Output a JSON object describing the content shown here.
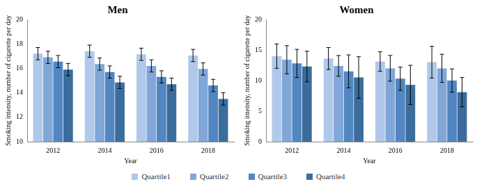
{
  "chart_data": [
    {
      "type": "bar",
      "title": "Men",
      "x_label": "Year",
      "y_label": "Smoking intensity, number of cigarette per day",
      "categories": [
        "2012",
        "2014",
        "2016",
        "2018"
      ],
      "series": [
        {
          "name": "Quartile1",
          "color": "#b0c8ea",
          "values": [
            17.2,
            17.4,
            17.15,
            17.05
          ],
          "errors": [
            0.5,
            0.5,
            0.5,
            0.5
          ]
        },
        {
          "name": "Quartile2",
          "color": "#80a7d8",
          "values": [
            16.9,
            16.35,
            16.2,
            15.95
          ],
          "errors": [
            0.5,
            0.5,
            0.5,
            0.5
          ]
        },
        {
          "name": "Quartile3",
          "color": "#5186c1",
          "values": [
            16.55,
            15.7,
            15.3,
            14.6
          ],
          "errors": [
            0.5,
            0.5,
            0.5,
            0.5
          ]
        },
        {
          "name": "Quartile4",
          "color": "#3b6c9c",
          "values": [
            15.9,
            14.85,
            14.7,
            13.5
          ],
          "errors": [
            0.5,
            0.5,
            0.5,
            0.5
          ]
        }
      ],
      "ylim": [
        10,
        20
      ],
      "yticks": [
        10,
        12,
        14,
        16,
        18,
        20
      ],
      "grid": false,
      "legend": "bottom"
    },
    {
      "type": "bar",
      "title": "Women",
      "x_label": "Year",
      "y_label": "Smoking intensity, number of cigarette per day",
      "categories": [
        "2012",
        "2014",
        "2016",
        "2018"
      ],
      "series": [
        {
          "name": "Quartile1",
          "color": "#b0c8ea",
          "values": [
            14.0,
            13.6,
            13.1,
            13.0
          ],
          "errors": [
            2.0,
            1.8,
            1.6,
            2.6
          ]
        },
        {
          "name": "Quartile2",
          "color": "#80a7d8",
          "values": [
            13.4,
            12.4,
            12.0,
            12.0
          ],
          "errors": [
            2.3,
            1.7,
            2.1,
            2.3
          ]
        },
        {
          "name": "Quartile3",
          "color": "#5186c1",
          "values": [
            12.8,
            11.5,
            10.3,
            10.0
          ],
          "errors": [
            2.3,
            2.7,
            1.9,
            1.9
          ]
        },
        {
          "name": "Quartile4",
          "color": "#3b6c9c",
          "values": [
            12.3,
            10.5,
            9.3,
            8.1
          ],
          "errors": [
            2.5,
            3.4,
            3.2,
            2.4
          ]
        }
      ],
      "ylim": [
        0,
        20
      ],
      "yticks": [
        0,
        5,
        10,
        15,
        20
      ],
      "grid": false,
      "legend": "bottom"
    }
  ]
}
